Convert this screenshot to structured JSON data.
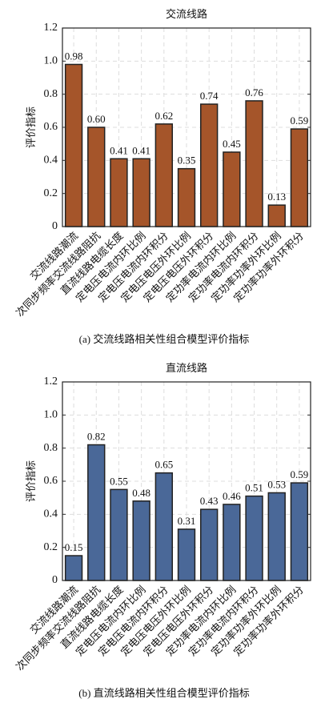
{
  "chart_data": [
    {
      "type": "bar",
      "title": "交流线路",
      "ylabel": "评价指标",
      "caption": "(a) 交流线路相关性组合模型评价指标",
      "categories": [
        "交流线路潮流",
        "次同步频率交流线路阻抗",
        "直流线路电缆长度",
        "定电压电流内环比例",
        "定电压电流内环积分",
        "定电压电压外环比例",
        "定电压电压外环积分",
        "定功率电流内环比例",
        "定功率电流内环积分",
        "定功率功率外环比例",
        "定功率功率外环积分"
      ],
      "values": [
        0.98,
        0.6,
        0.41,
        0.41,
        0.62,
        0.35,
        0.74,
        0.45,
        0.76,
        0.13,
        0.59
      ],
      "value_labels": [
        "0.98",
        "0.60",
        "0.41",
        "0.41",
        "0.62",
        "0.35",
        "0.74",
        "0.45",
        "0.76",
        "0.13",
        "0.59"
      ],
      "color": "#a5552a",
      "ylim": [
        0,
        1.2
      ],
      "yticks": [
        0,
        0.2,
        0.4,
        0.6,
        0.8,
        {
          "value": 1,
          "label": "1.0"
        },
        1.2
      ],
      "grid": true
    },
    {
      "type": "bar",
      "title": "直流线路",
      "ylabel": "评价指标",
      "caption": "(b) 直流线路相关性组合模型评价指标",
      "categories": [
        "交流线路潮流",
        "次同步频率交流线路阻抗",
        "直流线路电缆长度",
        "定电压电流内环比例",
        "定电压电流内环积分",
        "定电压电压外环比例",
        "定电压电压外环积分",
        "定功率电流内环比例",
        "定功率电流内环积分",
        "定功率功率外环比例",
        "定功率功率外环积分"
      ],
      "values": [
        0.15,
        0.82,
        0.55,
        0.48,
        0.65,
        0.31,
        0.43,
        0.46,
        0.51,
        0.53,
        0.59
      ],
      "value_labels": [
        "0.15",
        "0.82",
        "0.55",
        "0.48",
        "0.65",
        "0.31",
        "0.43",
        "0.46",
        "0.51",
        "0.53",
        "0.59"
      ],
      "color": "#4a6898",
      "ylim": [
        0,
        1.2
      ],
      "yticks": [
        0,
        0.2,
        0.4,
        0.6,
        0.8,
        {
          "value": 1,
          "label": "1.0"
        },
        1.2
      ],
      "grid": true
    }
  ]
}
